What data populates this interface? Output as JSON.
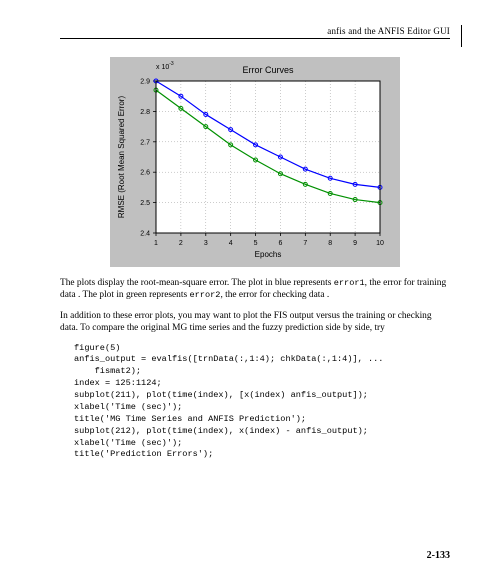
{
  "header": {
    "running": "anfis and the ANFIS Editor GUI"
  },
  "chart": {
    "type": "line",
    "title": "Error Curves",
    "title_fontsize": 9,
    "xlabel": "Epochs",
    "ylabel": "RMSE (Root Mean Squared Error)",
    "label_fontsize": 8,
    "tick_fontsize": 7,
    "background_color": "#c0c0c0",
    "axes_face_color": "#ffffff",
    "grid_color": "#9a9a9a",
    "axes_line_color": "#000000",
    "xlim": [
      1,
      10
    ],
    "xticks": [
      1,
      2,
      3,
      4,
      5,
      6,
      7,
      8,
      9,
      10
    ],
    "ylim": [
      2.4,
      2.9
    ],
    "yticks": [
      2.4,
      2.5,
      2.6,
      2.7,
      2.8,
      2.9
    ],
    "y_exponent_label": "x 10^-3",
    "line_width": 1.2,
    "marker": "circle",
    "marker_size": 4,
    "series": [
      {
        "name": "error1",
        "color": "#0000ff",
        "x": [
          1,
          2,
          3,
          4,
          5,
          6,
          7,
          8,
          9,
          10
        ],
        "y": [
          2.9,
          2.85,
          2.79,
          2.74,
          2.69,
          2.65,
          2.61,
          2.58,
          2.56,
          2.55
        ]
      },
      {
        "name": "error2",
        "color": "#009000",
        "x": [
          1,
          2,
          3,
          4,
          5,
          6,
          7,
          8,
          9,
          10
        ],
        "y": [
          2.87,
          2.81,
          2.75,
          2.69,
          2.64,
          2.595,
          2.56,
          2.53,
          2.51,
          2.5
        ]
      }
    ]
  },
  "paragraphs": {
    "p1_a": "The plots display the root-mean-square error. The plot in blue represents ",
    "p1_b": ", the error for training data . The plot in green represents ",
    "p1_c": ", the error for checking data .",
    "err1": "error1",
    "err2": "error2",
    "p2": "In addition to these error plots, you may want to plot the FIS output versus the training or checking data. To compare the original MG time series and the fuzzy prediction side by side, try"
  },
  "code": {
    "l1": "figure(5)",
    "l2": "anfis_output = evalfis([trnData(:,1:4); chkData(:,1:4)], ...",
    "l3": "    fismat2);",
    "l4": "index = 125:1124;",
    "l5": "subplot(211), plot(time(index), [x(index) anfis_output]);",
    "l6": "xlabel('Time (sec)');",
    "l7": "title('MG Time Series and ANFIS Prediction');",
    "l8": "subplot(212), plot(time(index), x(index) - anfis_output);",
    "l9": "xlabel('Time (sec)');",
    "l10": "title('Prediction Errors');"
  },
  "pagenum": "2-133"
}
